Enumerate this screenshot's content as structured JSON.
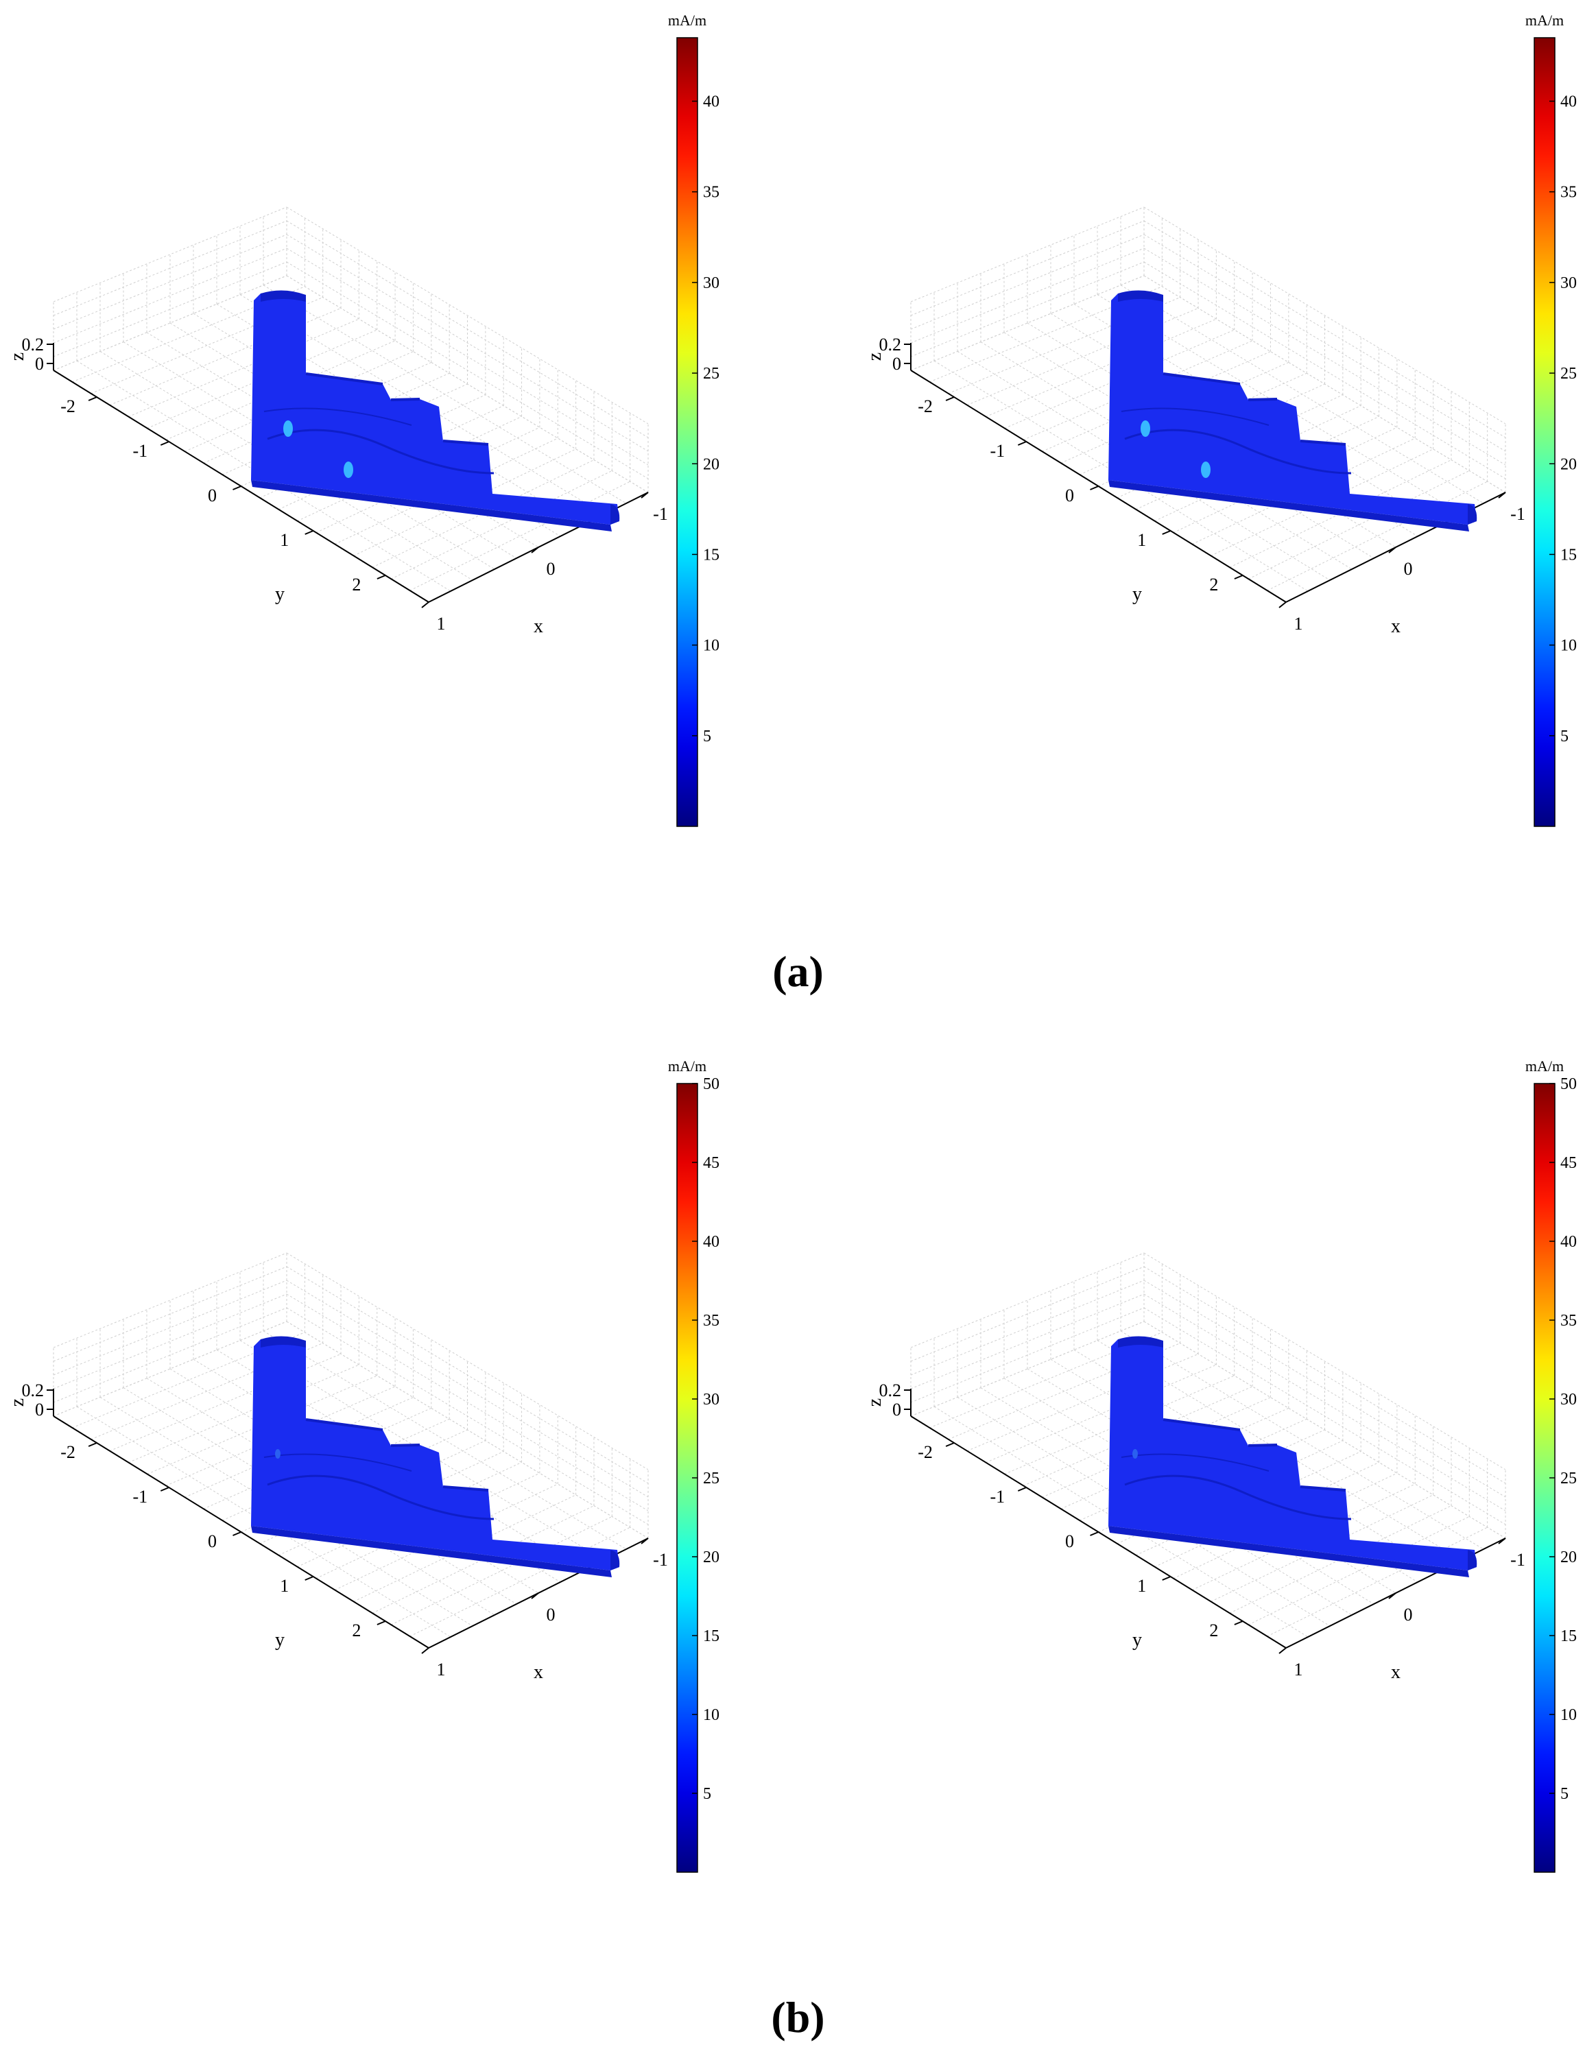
{
  "captions": [
    "(a)",
    "(b)"
  ],
  "colormap": "jet",
  "colors": {
    "surface": "#1a2cf0",
    "surface_dark": "#0f1ec8",
    "hotspot": "#38b8ff"
  },
  "chart_data": [
    {
      "type": "surface",
      "group": "(a)",
      "xlabel": "x",
      "ylabel": "y",
      "zlabel": "z",
      "xticks": [
        "1",
        "0",
        "-1"
      ],
      "yticks": [
        "-2",
        "-1",
        "0",
        "1",
        "2"
      ],
      "zticks": [
        "0.2",
        "0"
      ],
      "colorbar": {
        "unit": "mA/m",
        "range": [
          0,
          43.5
        ],
        "ticks": [
          "5",
          "10",
          "15",
          "20",
          "25",
          "30",
          "35",
          "40"
        ]
      },
      "grid": true
    },
    {
      "type": "surface",
      "group": "(a)",
      "xlabel": "x",
      "ylabel": "y",
      "zlabel": "z",
      "xticks": [
        "1",
        "0",
        "-1"
      ],
      "yticks": [
        "-2",
        "-1",
        "0",
        "1",
        "2"
      ],
      "zticks": [
        "0.2",
        "0"
      ],
      "colorbar": {
        "unit": "mA/m",
        "range": [
          0,
          43.5
        ],
        "ticks": [
          "5",
          "10",
          "15",
          "20",
          "25",
          "30",
          "35",
          "40"
        ]
      },
      "grid": true
    },
    {
      "type": "surface",
      "group": "(b)",
      "xlabel": "x",
      "ylabel": "y",
      "zlabel": "z",
      "xticks": [
        "1",
        "0",
        "-1"
      ],
      "yticks": [
        "-2",
        "-1",
        "0",
        "1",
        "2"
      ],
      "zticks": [
        "0.2",
        "0"
      ],
      "colorbar": {
        "unit": "mA/m",
        "range": [
          0,
          50
        ],
        "ticks": [
          "5",
          "10",
          "15",
          "20",
          "25",
          "30",
          "35",
          "40",
          "45",
          "50"
        ]
      },
      "grid": true
    },
    {
      "type": "surface",
      "group": "(b)",
      "xlabel": "x",
      "ylabel": "y",
      "zlabel": "z",
      "xticks": [
        "1",
        "0",
        "-1"
      ],
      "yticks": [
        "-2",
        "-1",
        "0",
        "1",
        "2"
      ],
      "zticks": [
        "0.2",
        "0"
      ],
      "colorbar": {
        "unit": "mA/m",
        "range": [
          0,
          50
        ],
        "ticks": [
          "5",
          "10",
          "15",
          "20",
          "25",
          "30",
          "35",
          "40",
          "45",
          "50"
        ]
      },
      "grid": true
    }
  ]
}
